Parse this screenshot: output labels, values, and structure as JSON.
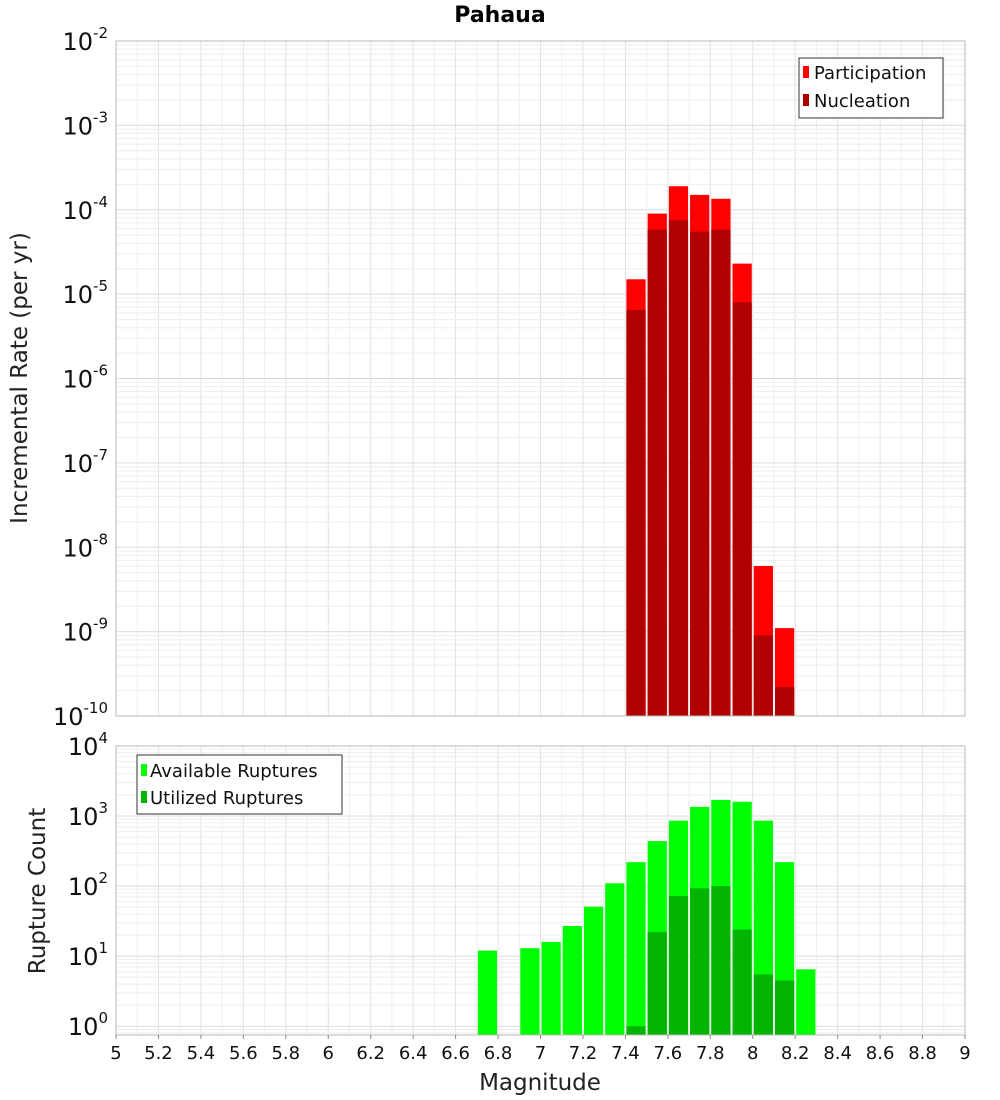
{
  "title": "Pahaua",
  "chart_data": [
    {
      "type": "bar",
      "x_scale": "linear",
      "y_scale": "log",
      "xlim": [
        5,
        9
      ],
      "ylim": [
        1e-10,
        0.01
      ],
      "ylabel": "Incremental Rate (per yr)",
      "grid": true,
      "legend_position": "top-right",
      "bin_width": 0.1,
      "x": [
        7.45,
        7.55,
        7.65,
        7.75,
        7.85,
        7.95,
        8.05,
        8.15
      ],
      "series": [
        {
          "name": "Participation",
          "color": "#ff0000",
          "values": [
            1.5e-05,
            9e-05,
            0.00019,
            0.00015,
            0.000135,
            2.3e-05,
            6e-09,
            1.1e-09
          ]
        },
        {
          "name": "Nucleation",
          "color": "#b00000",
          "values": [
            6.5e-06,
            5.8e-05,
            7.5e-05,
            5.5e-05,
            5.8e-05,
            8e-06,
            9e-10,
            2.2e-10
          ]
        }
      ]
    },
    {
      "type": "bar",
      "x_scale": "linear",
      "y_scale": "log",
      "xlim": [
        5,
        9
      ],
      "ylim": [
        0.75,
        10000
      ],
      "xlabel": "Magnitude",
      "ylabel": "Rupture Count",
      "grid": true,
      "legend_position": "top-left",
      "bin_width": 0.1,
      "x_ticks": [
        "5",
        "5.2",
        "5.4",
        "5.6",
        "5.8",
        "6",
        "6.2",
        "6.4",
        "6.6",
        "6.8",
        "7",
        "7.2",
        "7.4",
        "7.6",
        "7.8",
        "8",
        "8.2",
        "8.4",
        "8.6",
        "8.8",
        "9"
      ],
      "x": [
        6.75,
        6.95,
        7.05,
        7.15,
        7.25,
        7.35,
        7.45,
        7.55,
        7.65,
        7.75,
        7.85,
        7.95,
        8.05,
        8.15,
        8.25
      ],
      "series": [
        {
          "name": "Available Ruptures",
          "color": "#00ff00",
          "values": [
            12,
            13,
            16,
            27,
            51,
            110,
            220,
            440,
            860,
            1350,
            1700,
            1600,
            860,
            220,
            6.5
          ]
        },
        {
          "name": "Utilized Ruptures",
          "color": "#00b400",
          "values": [
            null,
            null,
            null,
            null,
            null,
            null,
            1,
            22,
            72,
            93,
            100,
            24,
            5.5,
            4.5,
            null
          ]
        }
      ]
    }
  ]
}
